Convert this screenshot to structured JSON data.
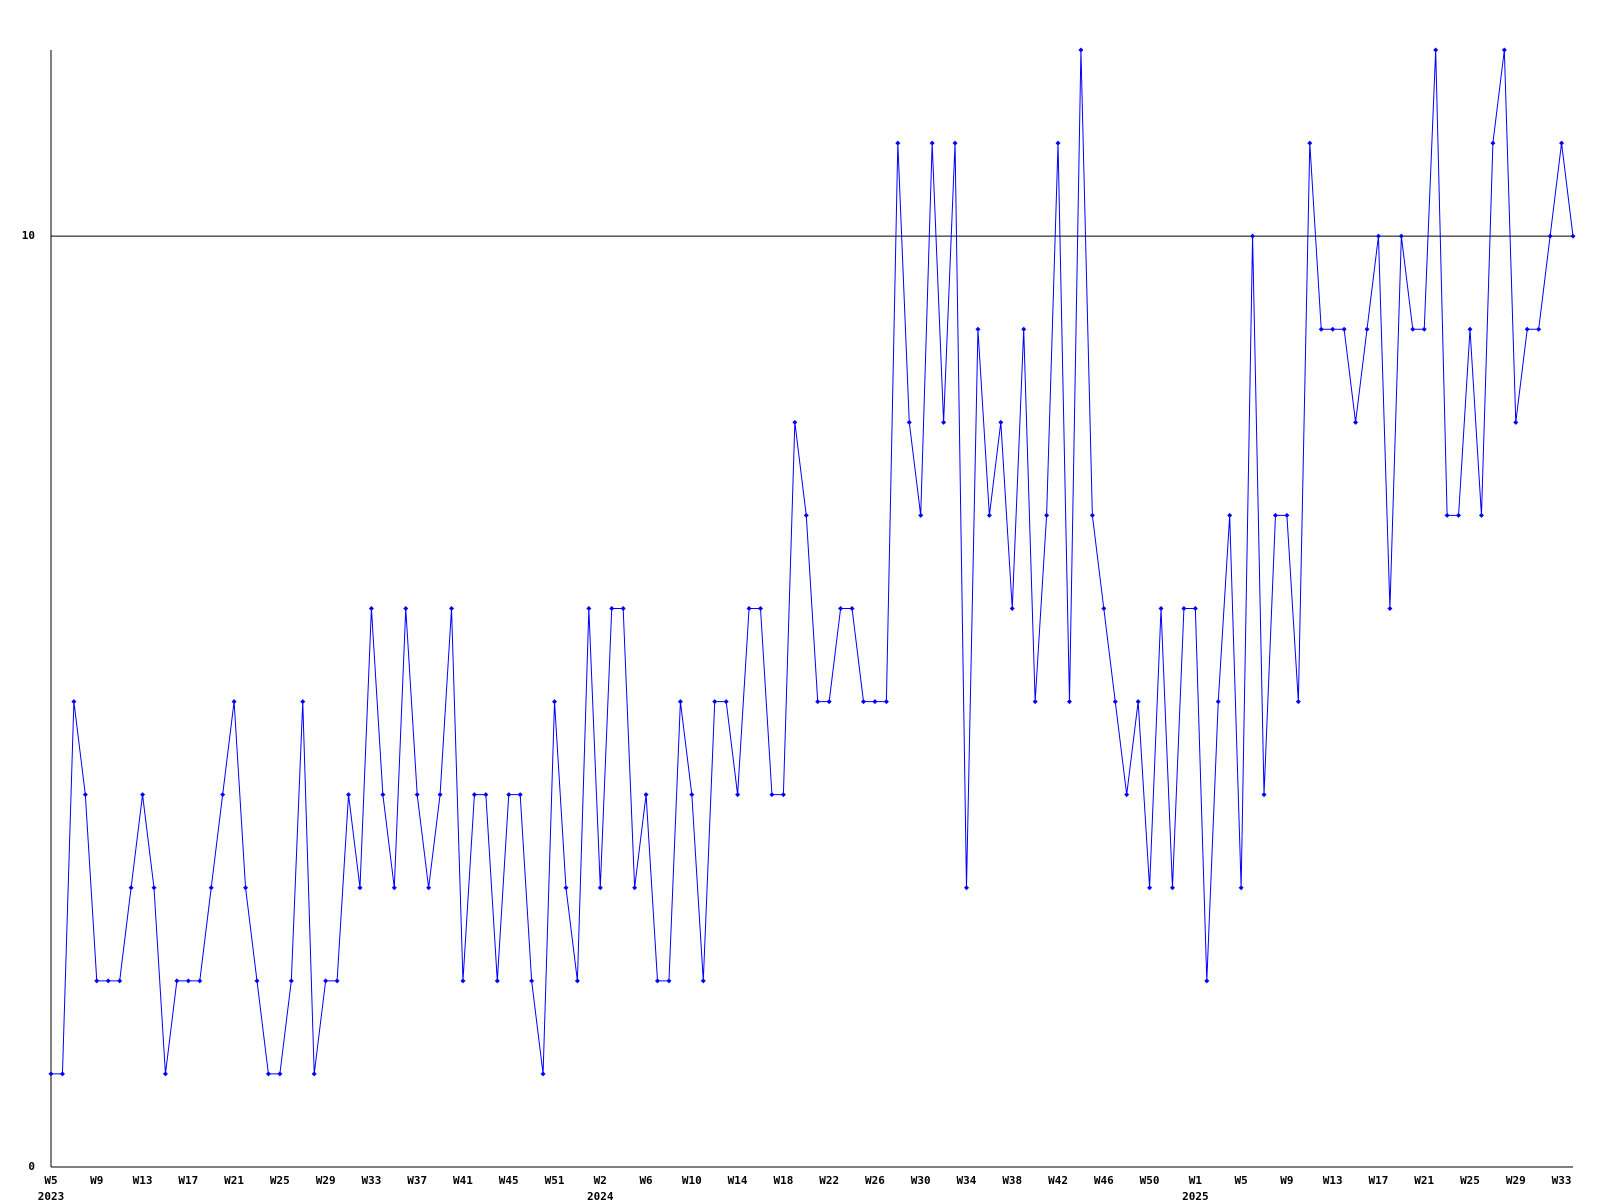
{
  "chart_data": {
    "type": "line",
    "categories": [
      "W5",
      null,
      null,
      null,
      "W9",
      null,
      null,
      null,
      "W13",
      null,
      null,
      null,
      "W17",
      null,
      null,
      null,
      "W21",
      null,
      null,
      null,
      "W25",
      null,
      null,
      null,
      "W29",
      null,
      null,
      null,
      "W33",
      null,
      null,
      null,
      "W37",
      null,
      null,
      null,
      "W41",
      null,
      null,
      null,
      "W45",
      null,
      null,
      null,
      "W51",
      null,
      null,
      null,
      "W2",
      null,
      null,
      null,
      "W6",
      null,
      null,
      null,
      "W10",
      null,
      null,
      null,
      "W14",
      null,
      null,
      null,
      "W18",
      null,
      null,
      null,
      "W22",
      null,
      null,
      null,
      "W26",
      null,
      null,
      null,
      "W30",
      null,
      null,
      null,
      "W34",
      null,
      null,
      null,
      "W38",
      null,
      null,
      null,
      "W42",
      null,
      null,
      null,
      "W46",
      null,
      null,
      null,
      "W50",
      null,
      null,
      null,
      "W1",
      null,
      null,
      null,
      "W5",
      null,
      null,
      null,
      "W9",
      null,
      null,
      null,
      "W13",
      null,
      null,
      null,
      "W17",
      null,
      null,
      null,
      "W21",
      null,
      null,
      null,
      "W25",
      null,
      null,
      null,
      "W29",
      null,
      null,
      null,
      "W33",
      null
    ],
    "year_labels": [
      "2023",
      null,
      null,
      null,
      null,
      null,
      null,
      null,
      null,
      null,
      null,
      null,
      null,
      null,
      null,
      null,
      null,
      null,
      null,
      null,
      null,
      null,
      null,
      null,
      null,
      null,
      null,
      null,
      null,
      null,
      null,
      null,
      null,
      null,
      null,
      null,
      null,
      null,
      null,
      null,
      null,
      null,
      null,
      null,
      null,
      null,
      null,
      null,
      "2024",
      null,
      null,
      null,
      null,
      null,
      null,
      null,
      null,
      null,
      null,
      null,
      null,
      null,
      null,
      null,
      null,
      null,
      null,
      null,
      null,
      null,
      null,
      null,
      null,
      null,
      null,
      null,
      null,
      null,
      null,
      null,
      null,
      null,
      null,
      null,
      null,
      null,
      null,
      null,
      null,
      null,
      null,
      null,
      null,
      null,
      null,
      null,
      null,
      null,
      null,
      null,
      "2025",
      null,
      null,
      null,
      null,
      null,
      null,
      null,
      null,
      null,
      null,
      null,
      null,
      null,
      null,
      null,
      null,
      null,
      null,
      null,
      null,
      null,
      null,
      null,
      null,
      null,
      null,
      null,
      null,
      null,
      null,
      null,
      null,
      null
    ],
    "series": [
      {
        "color": "#0000ff",
        "values": [
          1,
          1,
          5,
          4,
          2,
          2,
          2,
          3,
          4,
          3,
          1,
          2,
          2,
          2,
          3,
          4,
          5,
          3,
          2,
          1,
          1,
          2,
          5,
          1,
          2,
          2,
          4,
          3,
          6,
          4,
          3,
          6,
          4,
          3,
          4,
          6,
          2,
          4,
          4,
          2,
          4,
          4,
          2,
          1,
          5,
          3,
          2,
          6,
          3,
          6,
          6,
          3,
          4,
          2,
          2,
          5,
          4,
          2,
          5,
          5,
          4,
          6,
          6,
          4,
          4,
          8,
          7,
          5,
          5,
          6,
          6,
          5,
          5,
          5,
          11,
          8,
          7,
          11,
          8,
          11,
          3,
          9,
          7,
          8,
          6,
          9,
          5,
          7,
          11,
          5,
          12,
          7,
          6,
          5,
          4,
          5,
          3,
          6,
          3,
          6,
          6,
          2,
          5,
          7,
          3,
          10,
          4,
          7,
          7,
          5,
          11,
          9,
          9,
          9,
          8,
          9,
          10,
          6,
          10,
          9,
          9,
          12,
          7,
          7,
          9,
          7,
          11,
          12,
          8,
          9,
          9,
          10,
          11,
          10
        ]
      }
    ],
    "ylim": [
      0,
      12
    ],
    "yticks": [
      0,
      10
    ],
    "grid": true
  }
}
